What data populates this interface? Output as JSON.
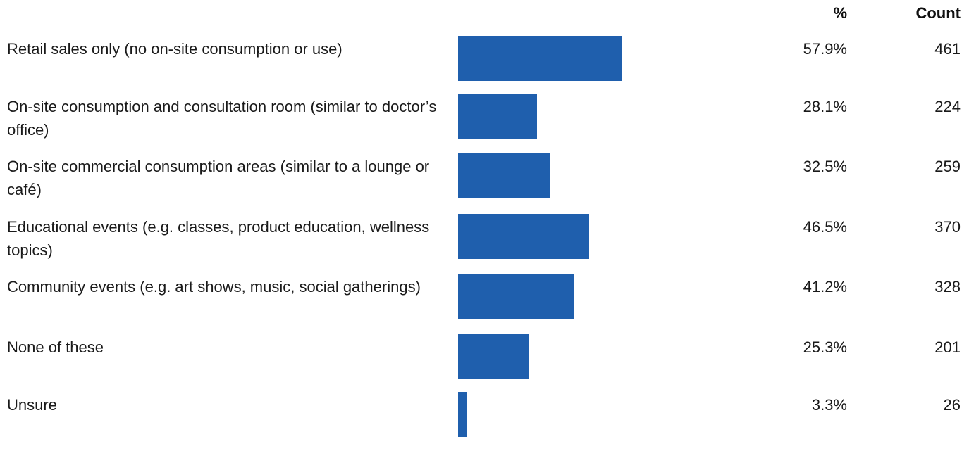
{
  "chart_data": {
    "type": "bar",
    "orientation": "horizontal",
    "headers": {
      "percent": "%",
      "count": "Count"
    },
    "categories": [
      "Retail sales only (no on-site consumption or use)",
      "On-site consumption and consultation room (similar to doctor’s office)",
      "On-site commercial consumption areas (similar to a lounge or café)",
      "Educational events (e.g. classes, product education, wellness topics)",
      "Community events (e.g. art shows, music, social gatherings)",
      "None of these",
      "Unsure"
    ],
    "percent_labels": [
      "57.9%",
      "28.1%",
      "32.5%",
      "46.5%",
      "41.2%",
      "25.3%",
      "3.3%"
    ],
    "values": [
      57.9,
      28.1,
      32.5,
      46.5,
      41.2,
      25.3,
      3.3
    ],
    "counts": [
      "461",
      "224",
      "259",
      "370",
      "328",
      "201",
      "26"
    ],
    "bar_color": "#1f5fad",
    "grid": false
  }
}
